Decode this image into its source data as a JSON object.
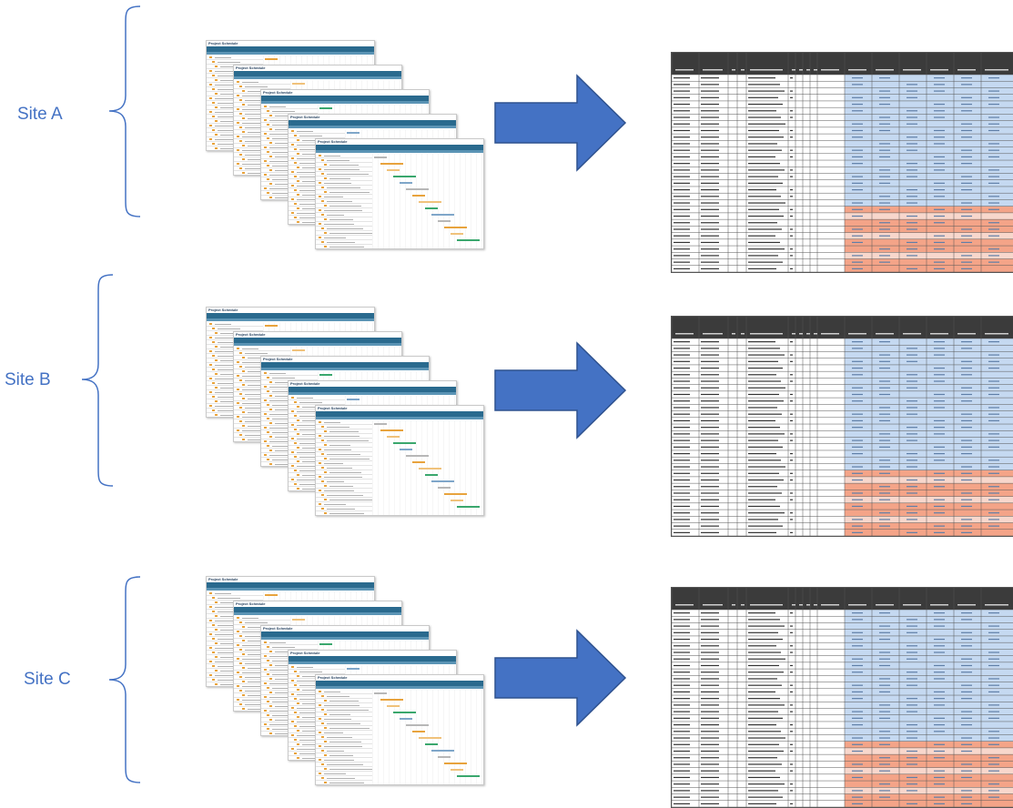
{
  "sites": [
    {
      "label": "Site A"
    },
    {
      "label": "Site B"
    },
    {
      "label": "Site C"
    }
  ],
  "schedule_card": {
    "title": "Project Schedule"
  },
  "colors": {
    "label": "#4472c4",
    "brace": "#4472c4",
    "arrow_fill": "#4472c4",
    "arrow_stroke": "#2f528f",
    "sheet_header": "#3b3b3b",
    "sheet_blue": "#c5d9f1",
    "sheet_red": "#f4a488",
    "sheet_pink": "#f8d7cc"
  }
}
